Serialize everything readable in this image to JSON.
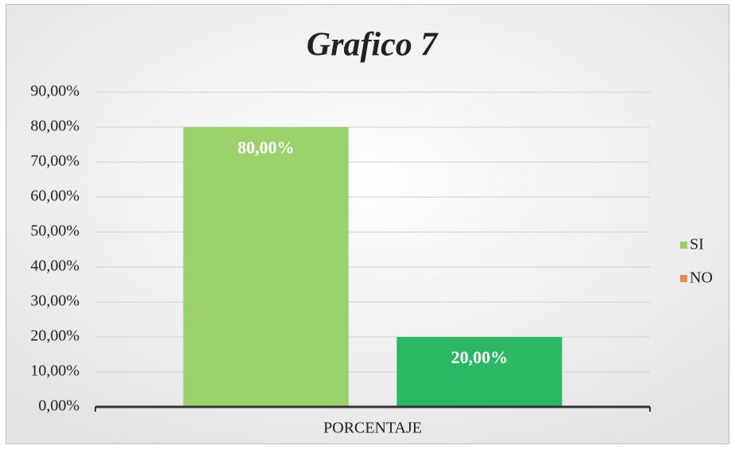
{
  "chart_data": {
    "type": "bar",
    "title": "Grafico 7",
    "categories": [
      "PORCENTAJE"
    ],
    "series": [
      {
        "name": "SI",
        "color": "#9bd16a",
        "legend_color": "#9bd16a",
        "values": [
          80
        ],
        "value_labels": [
          "80,00%"
        ]
      },
      {
        "name": "NO",
        "color": "#2bb763",
        "legend_color": "#f08a4b",
        "values": [
          20
        ],
        "value_labels": [
          "20,00%"
        ]
      }
    ],
    "ylim": [
      0,
      90
    ],
    "yticks": [
      {
        "value": 0,
        "label": "0,00%"
      },
      {
        "value": 10,
        "label": "10,00%"
      },
      {
        "value": 20,
        "label": "20,00%"
      },
      {
        "value": 30,
        "label": "30,00%"
      },
      {
        "value": 40,
        "label": "40,00%"
      },
      {
        "value": 50,
        "label": "50,00%"
      },
      {
        "value": 60,
        "label": "60,00%"
      },
      {
        "value": 70,
        "label": "70,00%"
      },
      {
        "value": 80,
        "label": "80,00%"
      },
      {
        "value": 90,
        "label": "90,00%"
      }
    ],
    "grid": true,
    "legend": "right"
  }
}
